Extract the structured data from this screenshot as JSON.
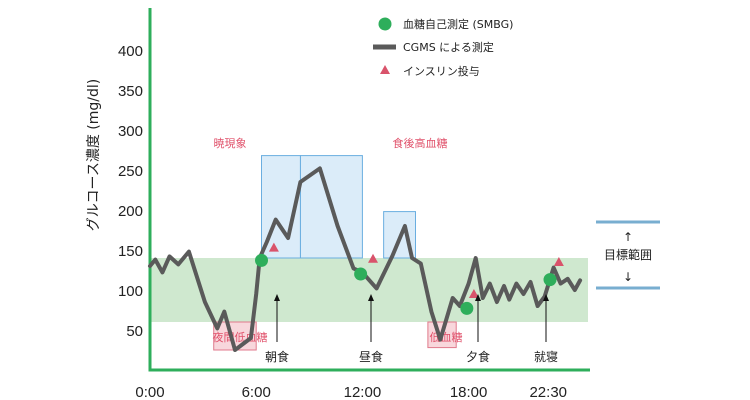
{
  "chart_data": {
    "type": "line",
    "ylabel": "グルコース濃度 (mg/dl)",
    "ylim": [
      0,
      400
    ],
    "yticks": [
      "400",
      "350",
      "300",
      "250",
      "200",
      "150",
      "100",
      "50"
    ],
    "yticks_values": [
      400,
      350,
      300,
      250,
      200,
      150,
      100,
      50
    ],
    "xlim_hours": [
      0,
      24
    ],
    "xticks": [
      {
        "label": "0:00",
        "hour": 0
      },
      {
        "label": "6:00",
        "hour": 6
      },
      {
        "label": "12:00",
        "hour": 12
      },
      {
        "label": "18:00",
        "hour": 18
      },
      {
        "label": "22:30",
        "hour": 22.5
      }
    ],
    "target_range": {
      "low": 60,
      "high": 140,
      "label": "目標範囲",
      "arrow_up": "↑",
      "arrow_down": "↓"
    },
    "legend": [
      {
        "label": "血糖自己測定 (SMBG)",
        "marker": "circle",
        "color": "#2eae5b"
      },
      {
        "label": "CGMS による測定",
        "marker": "line",
        "color": "#5a5a5a"
      },
      {
        "label": "インスリン投与",
        "marker": "triangle",
        "color": "#d9536b"
      }
    ],
    "series": [
      {
        "name": "CGMS による測定",
        "color": "#5a5a5a",
        "points": [
          [
            0,
            130
          ],
          [
            0.3,
            138
          ],
          [
            0.7,
            122
          ],
          [
            1.1,
            142
          ],
          [
            1.6,
            132
          ],
          [
            2.2,
            148
          ],
          [
            3.1,
            85
          ],
          [
            3.8,
            52
          ],
          [
            4.2,
            73
          ],
          [
            4.8,
            25
          ],
          [
            5.7,
            40
          ],
          [
            6.0,
            95
          ],
          [
            6.2,
            140
          ],
          [
            6.6,
            160
          ],
          [
            7.1,
            188
          ],
          [
            7.8,
            165
          ],
          [
            8.5,
            235
          ],
          [
            9.6,
            252
          ],
          [
            10.6,
            180
          ],
          [
            11.5,
            127
          ],
          [
            12.0,
            122
          ],
          [
            12.8,
            102
          ],
          [
            13.7,
            143
          ],
          [
            14.4,
            180
          ],
          [
            14.8,
            140
          ],
          [
            15.3,
            133
          ],
          [
            15.9,
            73
          ],
          [
            16.4,
            38
          ],
          [
            17.1,
            90
          ],
          [
            17.5,
            80
          ],
          [
            18.0,
            108
          ],
          [
            18.4,
            140
          ],
          [
            18.8,
            90
          ],
          [
            19.2,
            108
          ],
          [
            19.6,
            85
          ],
          [
            20.0,
            105
          ],
          [
            20.3,
            88
          ],
          [
            20.7,
            108
          ],
          [
            21.1,
            95
          ],
          [
            21.5,
            110
          ],
          [
            21.9,
            80
          ],
          [
            22.3,
            92
          ],
          [
            22.8,
            128
          ],
          [
            23.2,
            108
          ],
          [
            23.6,
            114
          ],
          [
            24.0,
            100
          ],
          [
            24.3,
            112
          ]
        ]
      }
    ],
    "smbg_points": [
      {
        "hour": 6.3,
        "value": 137
      },
      {
        "hour": 11.9,
        "value": 120
      },
      {
        "hour": 17.9,
        "value": 77
      },
      {
        "hour": 22.6,
        "value": 113
      }
    ],
    "insulin_points": [
      {
        "hour": 7.0,
        "value": 153
      },
      {
        "hour": 12.6,
        "value": 139
      },
      {
        "hour": 18.3,
        "value": 95
      },
      {
        "hour": 23.1,
        "value": 135
      }
    ],
    "zones": [
      {
        "label": "夜間低血糖",
        "kind": "low",
        "h0": 3.6,
        "h1": 6.0,
        "v0": 25,
        "v1": 60
      },
      {
        "label": "暁現象",
        "kind": "high",
        "h0": 6.3,
        "h1": 8.5,
        "v0": 140,
        "v1": 268
      },
      {
        "label": "食後高血糖",
        "kind": "high",
        "h0": 8.5,
        "h1": 12.0,
        "v0": 140,
        "v1": 268
      },
      {
        "label": "",
        "kind": "high",
        "h0": 13.2,
        "h1": 15.0,
        "v0": 140,
        "v1": 198
      },
      {
        "label": "低血糖",
        "kind": "low",
        "h0": 15.7,
        "h1": 17.3,
        "v0": 28,
        "v1": 60
      }
    ],
    "events": [
      {
        "label": "朝食",
        "hour": 6.2
      },
      {
        "label": "昼食",
        "hour": 12.0
      },
      {
        "label": "夕食",
        "hour": 18.0
      },
      {
        "label": "就寝",
        "hour": 22.0
      }
    ],
    "colors": {
      "axis": "#2eae5b",
      "target_fill": "#cfe8cf",
      "high_fill": "#d5e9f8",
      "high_stroke": "#6aaee0",
      "low_fill": "#f7d3d8",
      "low_stroke": "#e07a8c",
      "zone_text": "#e0506a",
      "target_bar": "#78aed0"
    }
  }
}
